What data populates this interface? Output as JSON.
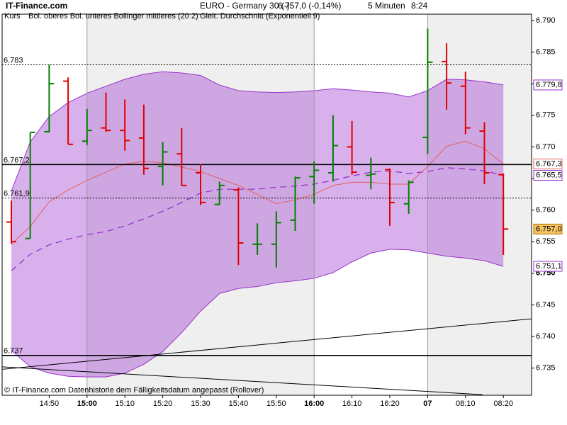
{
  "chart_data": {
    "type": "ohlc",
    "brand": "IT-Finance.com",
    "title": "EURO - Germany 30 (-)",
    "quote": "6.757,0 (-0,14%)",
    "interval": "5 Minuten",
    "time": "8:24",
    "footer": "© IT-Finance.com  Datenhistorie dem Fälligkeitsdatum angepasst (Rollover)",
    "price_name": "Kurs",
    "categories": [
      null,
      null,
      "14:50",
      null,
      "15:00",
      null,
      "15:10",
      null,
      "15:20",
      null,
      "15:30",
      null,
      "15:40",
      null,
      "15:50",
      null,
      "16:00",
      null,
      "16:10",
      null,
      "16:20",
      null,
      "07",
      null,
      "08:10",
      null,
      "08:20"
    ],
    "bold_categories": [
      4,
      16,
      22
    ],
    "open": [
      6.7581,
      6.7555,
      6.7724,
      6.7804,
      6.7709,
      6.773,
      6.7726,
      6.7714,
      6.7669,
      6.7689,
      6.7659,
      6.7609,
      6.7632,
      6.7546,
      6.7546,
      6.7584,
      6.7653,
      6.7659,
      6.77,
      6.7655,
      6.7664,
      6.761,
      6.7715,
      6.7835,
      6.7796,
      6.7725,
      6.7656
    ],
    "high": [
      6.7615,
      6.7723,
      6.783,
      6.781,
      6.776,
      6.7786,
      6.7775,
      6.7767,
      6.7708,
      6.773,
      6.7673,
      6.7645,
      6.7636,
      6.7579,
      6.7598,
      6.7653,
      6.7677,
      6.775,
      6.7741,
      6.7683,
      6.7666,
      6.7647,
      6.7887,
      6.7864,
      6.7819,
      6.7739,
      6.7658
    ],
    "low": [
      6.7547,
      6.7555,
      6.7723,
      6.7704,
      6.7703,
      6.7724,
      6.7694,
      6.7656,
      6.7639,
      6.7638,
      6.7608,
      6.7608,
      6.7513,
      6.7529,
      6.7509,
      6.7567,
      6.761,
      6.7645,
      6.7656,
      6.7633,
      6.7575,
      6.7594,
      6.7689,
      6.7759,
      6.772,
      6.7641,
      6.7529
    ],
    "close": [
      6.755,
      6.7723,
      6.78,
      6.7704,
      6.7726,
      6.7726,
      6.771,
      6.7666,
      6.7692,
      6.7639,
      6.7612,
      6.7639,
      6.7548,
      6.7546,
      6.758,
      6.7651,
      6.7663,
      6.7702,
      6.766,
      6.7657,
      6.7612,
      6.7644,
      6.7834,
      6.7801,
      6.773,
      6.7659,
      6.757
    ],
    "up_color": "#008000",
    "down_color": "#e00000",
    "bollinger": {
      "name": "Bol. oberes Bol. unteres Bollinger mittleres (20 2)",
      "color": "#9932cc",
      "upper": [
        6.763,
        6.7708,
        6.7748,
        6.777,
        6.7785,
        6.7796,
        6.7807,
        6.7815,
        6.7819,
        6.7817,
        6.7813,
        6.7798,
        6.7789,
        6.7787,
        6.7786,
        6.7787,
        6.7789,
        6.7792,
        6.779,
        6.7787,
        6.7785,
        6.7779,
        6.7789,
        6.7807,
        6.7806,
        6.7803,
        6.7798
      ],
      "lower": [
        6.7378,
        6.7352,
        6.7342,
        6.7337,
        6.7336,
        6.7336,
        6.7342,
        6.7356,
        6.7376,
        6.7406,
        6.744,
        6.7468,
        6.7476,
        6.7479,
        6.7485,
        6.7488,
        6.7492,
        6.7501,
        6.7518,
        6.7532,
        6.7538,
        6.7537,
        6.7532,
        6.7527,
        6.7524,
        6.752,
        6.7511
      ],
      "middle": [
        6.7504,
        6.753,
        6.7545,
        6.7554,
        6.7561,
        6.7566,
        6.7575,
        6.7586,
        6.7598,
        6.7612,
        6.7627,
        6.7633,
        6.7633,
        6.7633,
        6.7636,
        6.7638,
        6.7641,
        6.7647,
        6.7654,
        6.766,
        6.7662,
        6.7658,
        6.7661,
        6.7667,
        6.7665,
        6.7662,
        6.7655
      ]
    },
    "ema": {
      "name": "Gleit. Durchschnitt (Exponentiell 9)",
      "color": "#e06060",
      "values": [
        6.7546,
        6.7574,
        6.7613,
        6.7632,
        6.7647,
        6.766,
        6.7673,
        6.7677,
        6.7675,
        6.7668,
        6.7661,
        6.765,
        6.7639,
        6.7625,
        6.761,
        6.7616,
        6.7625,
        6.7639,
        6.7644,
        6.7644,
        6.7641,
        6.7641,
        6.7669,
        6.7701,
        6.7709,
        6.7697,
        6.7673
      ]
    },
    "levels": [
      {
        "value": 6.783,
        "label": "6.783",
        "style": "dotted"
      },
      {
        "value": 6.7672,
        "label": "6.767,2",
        "style": "solid"
      },
      {
        "value": 6.7619,
        "label": "6.761,9",
        "style": "dotted"
      },
      {
        "value": 6.737,
        "label": "6.737",
        "style": "solid"
      }
    ],
    "trendlines": [
      {
        "x": [
          -0.49,
          27.5
        ],
        "y": [
          6.7348,
          6.7428
        ]
      },
      {
        "x": [
          -0.49,
          24.9
        ],
        "y": [
          6.7352,
          6.7308
        ]
      }
    ],
    "end_labels": [
      {
        "value": 6.7798,
        "label": "6.779,8",
        "color": "#9932cc",
        "fill": "#ffffff"
      },
      {
        "value": 6.7673,
        "label": "6.767,3",
        "color": "#e06060",
        "fill": "#ffffff"
      },
      {
        "value": 6.7655,
        "label": "6.765,5",
        "color": "#9932cc",
        "fill": "#ffffff"
      },
      {
        "value": 6.757,
        "label": "6.757,0",
        "color": "#b07000",
        "fill": "#f7c560"
      },
      {
        "value": 6.7511,
        "label": "6.751,1",
        "color": "#9932cc",
        "fill": "#ffffff"
      }
    ],
    "ylim": [
      6.7307,
      6.791
    ],
    "yticks": [
      {
        "value": 6.735,
        "label": "6.735"
      },
      {
        "value": 6.74,
        "label": "6.740"
      },
      {
        "value": 6.745,
        "label": "6.745"
      },
      {
        "value": 6.75,
        "label": "6.750"
      },
      {
        "value": 6.755,
        "label": "6.755"
      },
      {
        "value": 6.76,
        "label": "6.760"
      },
      {
        "value": 6.765,
        "label": "6.765"
      },
      {
        "value": 6.77,
        "label": "6.770"
      },
      {
        "value": 6.775,
        "label": "6.775"
      },
      {
        "value": 6.78,
        "label": "6.780"
      },
      {
        "value": 6.785,
        "label": "6.785"
      },
      {
        "value": 6.79,
        "label": "6.790"
      }
    ],
    "bold_ytick": 6.75
  }
}
